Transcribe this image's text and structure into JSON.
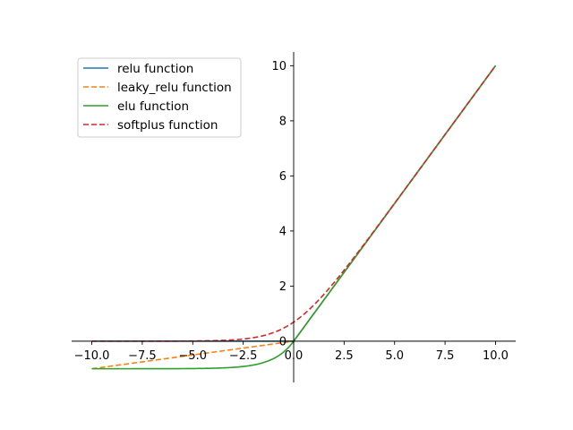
{
  "chart_data": {
    "type": "line",
    "title": "",
    "xlabel": "",
    "ylabel": "",
    "xlim": [
      -11.0,
      11.0
    ],
    "ylim": [
      -1.5,
      10.5
    ],
    "x_range": [
      -10,
      10
    ],
    "xticks": [
      -10.0,
      -7.5,
      -5.0,
      -2.5,
      0.0,
      2.5,
      5.0,
      7.5,
      10.0
    ],
    "xtick_labels": [
      "−10.0",
      "−7.5",
      "−5.0",
      "−2.5",
      "0.0",
      "2.5",
      "5.0",
      "7.5",
      "10.0"
    ],
    "yticks": [
      0,
      2,
      4,
      6,
      8,
      10
    ],
    "ytick_labels": [
      "0",
      "2",
      "4",
      "6",
      "8",
      "10"
    ],
    "grid": false,
    "legend_position": "top-left",
    "spines": "centered-at-origin",
    "series": [
      {
        "name": "relu function",
        "function": "relu",
        "color": "#1f77b4",
        "dash": "solid"
      },
      {
        "name": "leaky_relu function",
        "function": "leaky_relu",
        "alpha": 0.1,
        "color": "#ff7f0e",
        "dash": "dashed"
      },
      {
        "name": "elu function",
        "function": "elu",
        "alpha": 1.0,
        "color": "#2ca02c",
        "dash": "solid"
      },
      {
        "name": "softplus function",
        "function": "softplus",
        "color": "#d62728",
        "dash": "dashed"
      }
    ]
  }
}
